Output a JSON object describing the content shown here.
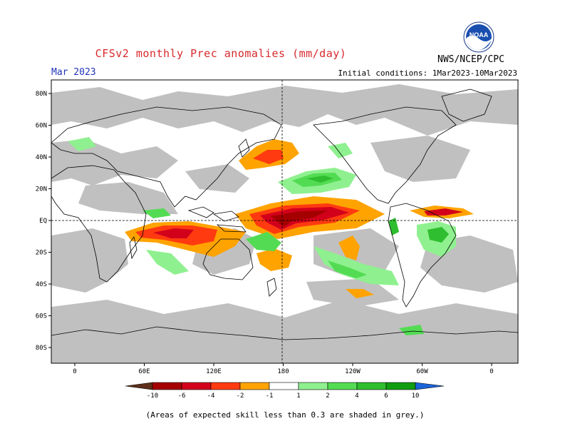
{
  "header": {
    "title": "CFSv2 monthly Prec anomalies (mm/day)",
    "organization": "NWS/NCEP/CPC",
    "month": "Mar 2023",
    "initial_conditions": "Initial conditions: 1Mar2023-10Mar2023"
  },
  "logo": {
    "icon": "noaa-logo-icon",
    "text": "NOAA"
  },
  "map": {
    "lat_labels": [
      "80N",
      "60N",
      "40N",
      "20N",
      "EQ",
      "20S",
      "40S",
      "60S",
      "80S"
    ],
    "lon_labels": [
      "0",
      "60E",
      "120E",
      "180",
      "120W",
      "60W",
      "0"
    ],
    "skill_mask_color": "#c0c0c0",
    "reference_lines": [
      "equator",
      "dateline"
    ]
  },
  "colorbar": {
    "ticks": [
      "-10",
      "-6",
      "-4",
      "-2",
      "-1",
      "1",
      "2",
      "4",
      "6",
      "10"
    ],
    "colors": [
      "#5e2f1a",
      "#a50000",
      "#d2001b",
      "#ff3a10",
      "#ffa300",
      "#ffffff",
      "#8ff08f",
      "#53dc53",
      "#2fbe2f",
      "#119d11",
      "#1b63d8"
    ]
  },
  "footnote": "(Areas of expected skill less than 0.3 are shaded in grey.)",
  "chart_data": {
    "type": "heatmap",
    "title": "CFSv2 monthly Prec anomalies (mm/day)",
    "variable": "Prec anomalies",
    "units": "mm/day",
    "valid": "Mar 2023",
    "contour_levels": [
      -10,
      -6,
      -4,
      -2,
      -1,
      1,
      2,
      4,
      6,
      10
    ],
    "features": [
      {
        "region": "central equatorial Pacific",
        "sign": "negative",
        "max_magnitude": 10
      },
      {
        "region": "eastern Indian Ocean 10S",
        "sign": "negative",
        "max_magnitude": 6
      },
      {
        "region": "North Pacific 40N",
        "sign": "negative",
        "max_magnitude": 4
      },
      {
        "region": "subtropical North Pacific 20N",
        "sign": "positive",
        "max_magnitude": 6
      },
      {
        "region": "tropical South Atlantic/Brazil",
        "sign": "positive",
        "max_magnitude": 6
      },
      {
        "region": "tropical North Atlantic 5N",
        "sign": "negative",
        "max_magnitude": 6
      },
      {
        "region": "South Pacific convergence zone",
        "sign": "positive",
        "max_magnitude": 4
      }
    ]
  }
}
